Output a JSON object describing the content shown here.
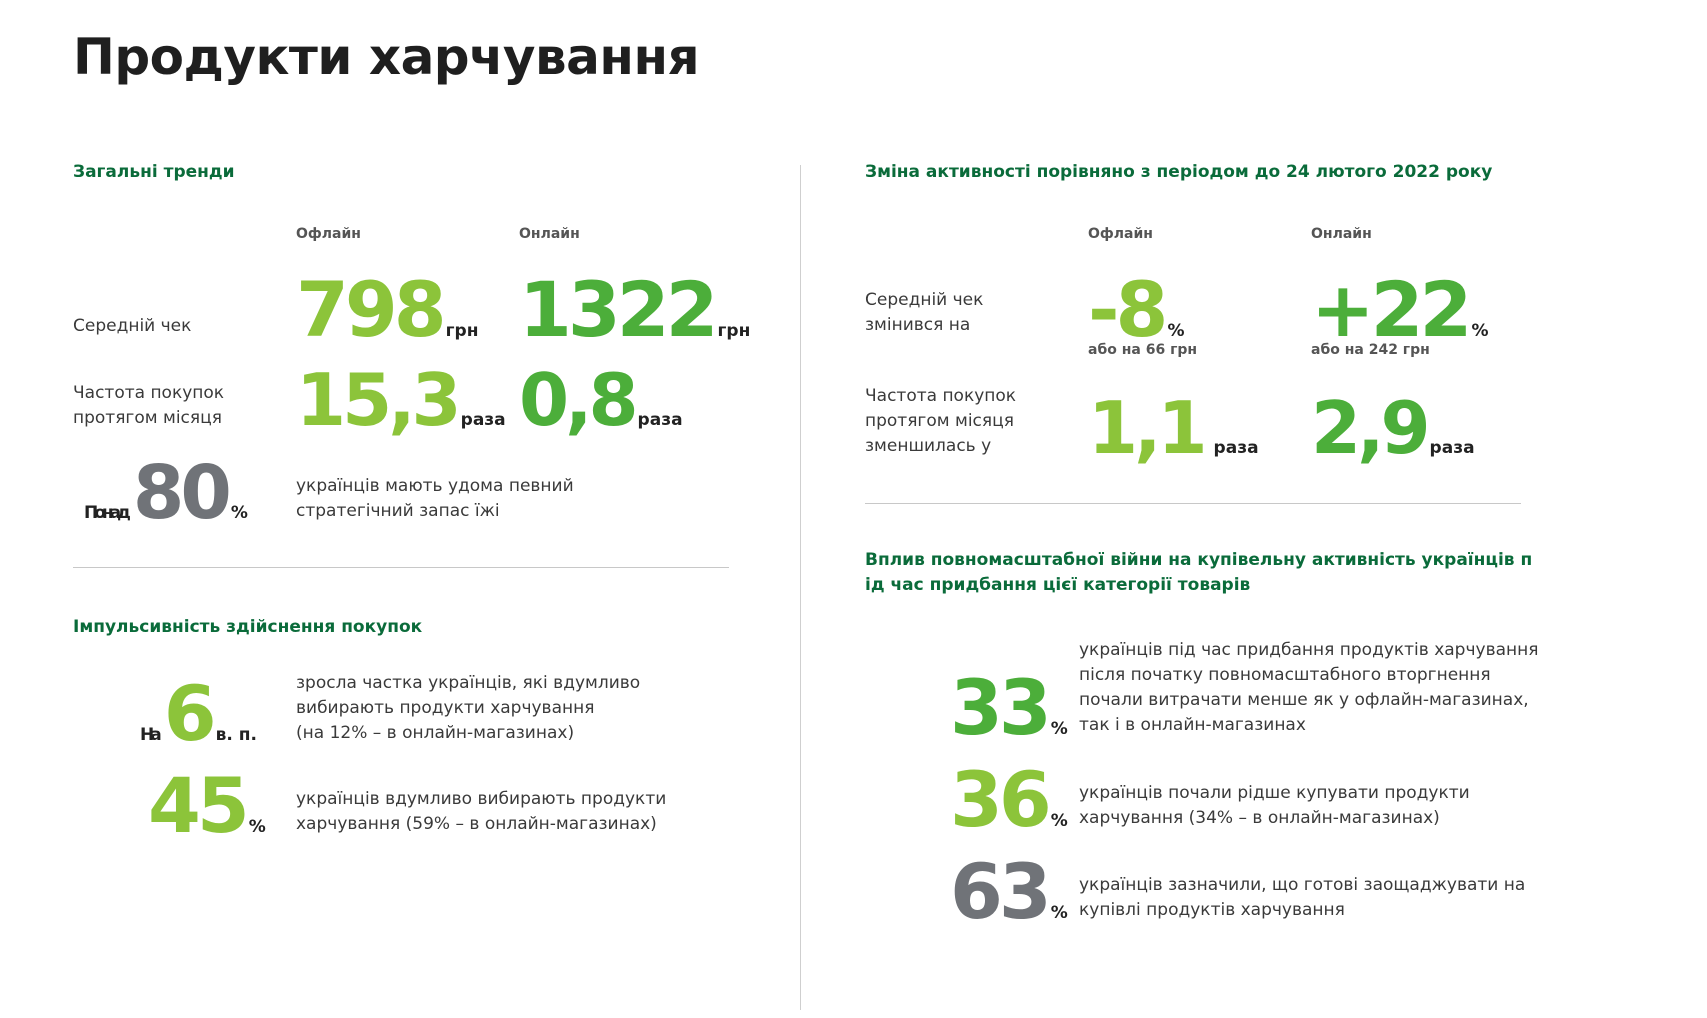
{
  "page_title": "Продукти харчування",
  "general": {
    "title": "Загальні тренди",
    "col_offline": "Офлайн",
    "col_online": "Онлайн",
    "avg_check_label": "Середній чек",
    "avg_check_offline": "798",
    "avg_check_online": "1322",
    "currency": "грн",
    "freq_label_1": "Частота покупок",
    "freq_label_2": "протягом місяця",
    "freq_offline": "15,3",
    "freq_online": "0,8",
    "times_unit": "раза",
    "stock_prefix": "Понад",
    "stock_value": "80",
    "percent": "%",
    "stock_desc_1": "українців мають удома певний",
    "stock_desc_2": "стратегічний запас їжі"
  },
  "impulse": {
    "title": "Імпульсивність здійснення покупок",
    "pp_prefix": "На",
    "pp_value": "6",
    "pp_unit": "в. п.",
    "pp_desc_1": "зросла частка українців, які вдумливо",
    "pp_desc_2": "вибирають продукти харчування",
    "pp_desc_3": "(на 12% – в онлайн-магазинах)",
    "share_value": "45",
    "share_desc_1": "українців вдумливо вибирають продукти",
    "share_desc_2": "харчування (59% – в онлайн-магазинах)"
  },
  "change": {
    "title": "Зміна активності порівняно з періодом до 24 лютого 2022 року",
    "col_offline": "Офлайн",
    "col_online": "Онлайн",
    "check_label_1": "Середній чек",
    "check_label_2": "змінився на",
    "check_offline": "-8",
    "check_online": "+22",
    "check_offline_note": "або на 66 грн",
    "check_online_note": "або на 242 грн",
    "freq_label_1": "Частота покупок",
    "freq_label_2": "протягом місяця",
    "freq_label_3": "зменшилась у",
    "freq_offline": "1,1",
    "freq_online": "2,9"
  },
  "impact": {
    "title_1": "Вплив повномасштабної війни на купівельну активність українців п",
    "title_2": "ід час придбання цієї категорії товарів",
    "stat1_value": "33",
    "stat1_desc_1": "українців під час придбання продуктів харчування",
    "stat1_desc_2": "після початку повномасштабного вторгнення",
    "stat1_desc_3": "почали витрачати менше як у офлайн-магазинах,",
    "stat1_desc_4": "так і в онлайн-магазинах",
    "stat2_value": "36",
    "stat2_desc_1": "українців почали рідше купувати продукти",
    "stat2_desc_2": "харчування (34% – в онлайн-магазинах)",
    "stat3_value": "63",
    "stat3_desc_1": "українців зазначили, що готові заощаджувати на",
    "stat3_desc_2": "купівлі продуктів харчування"
  },
  "colors": {
    "section_title": "#0a6b3a",
    "light_green": "#8cc43a",
    "mid_green": "#4cae3a",
    "grey": "#707378"
  }
}
